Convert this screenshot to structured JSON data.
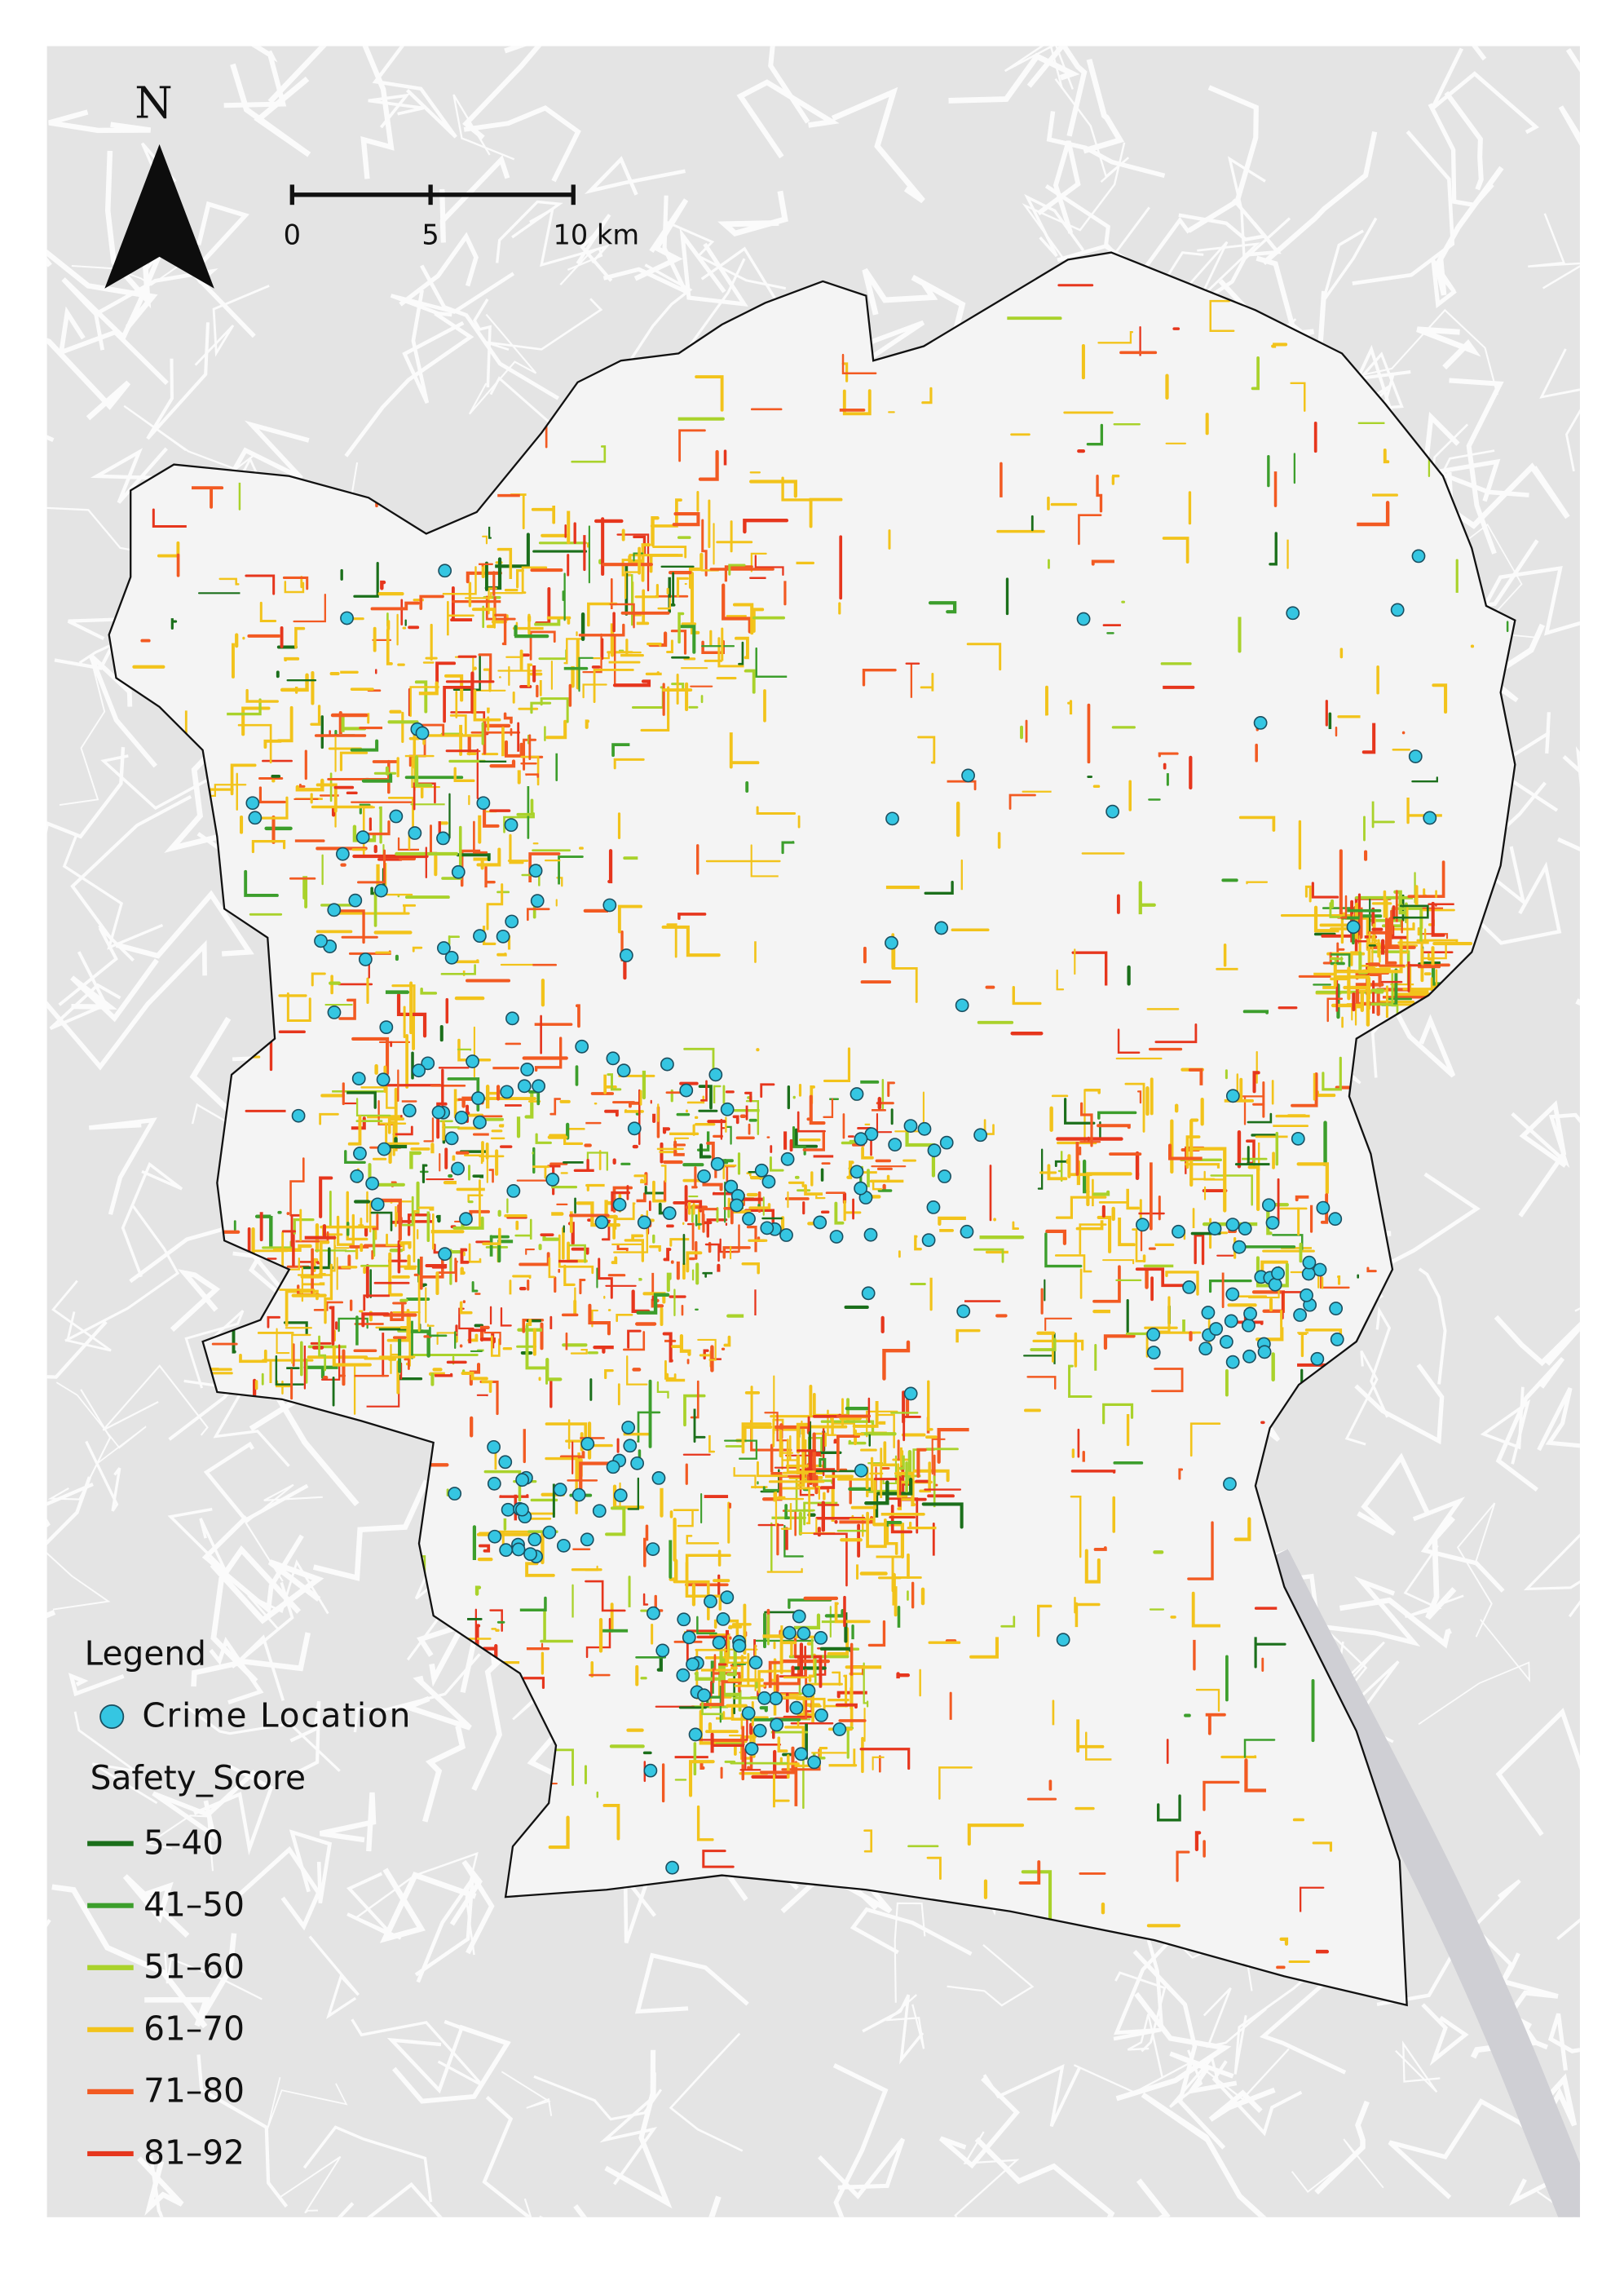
{
  "north_arrow": {
    "label": "N"
  },
  "scale_bar": {
    "labels": [
      "0",
      "5",
      "10 km"
    ]
  },
  "legend": {
    "title": "Legend",
    "points": {
      "label": "Crime Location",
      "color": "#35c6e2"
    },
    "lines_title": "Safety_Score",
    "items": [
      {
        "label": "5–40",
        "color": "#1b6f1b"
      },
      {
        "label": "41–50",
        "color": "#3c9e2c"
      },
      {
        "label": "51–60",
        "color": "#a9d22b"
      },
      {
        "label": "61–70",
        "color": "#f2c31b"
      },
      {
        "label": "71–80",
        "color": "#f25a22"
      },
      {
        "label": "81–92",
        "color": "#e6361d"
      }
    ]
  }
}
